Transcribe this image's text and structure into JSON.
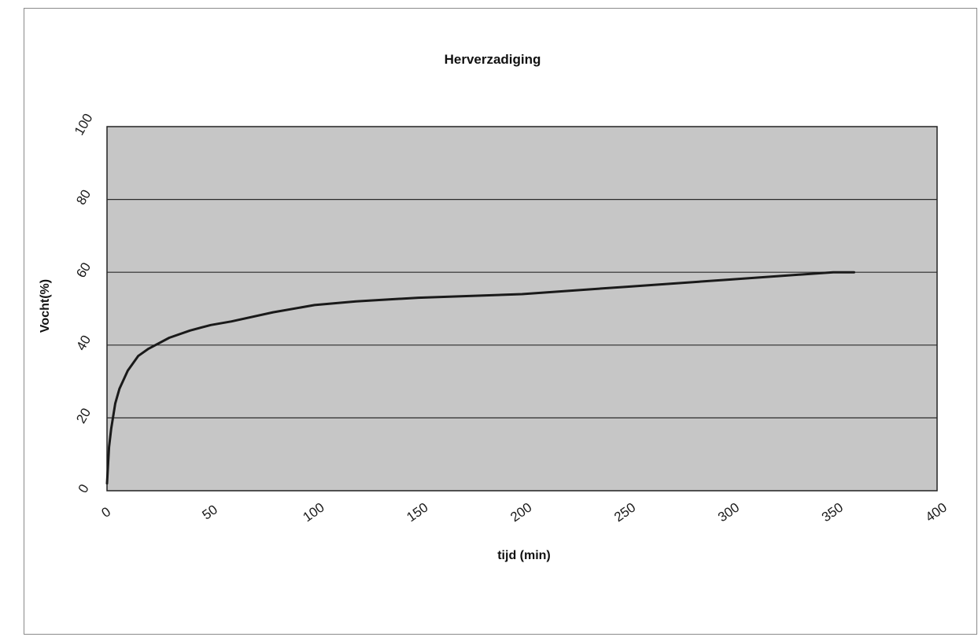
{
  "chart_data": {
    "type": "line",
    "title": "Herverzadiging",
    "xlabel": "tijd (min)",
    "ylabel": "Vocht(%)",
    "xlim": [
      0,
      400
    ],
    "ylim": [
      0,
      100
    ],
    "x_ticks": [
      "0",
      "50",
      "100",
      "150",
      "200",
      "250",
      "300",
      "350",
      "400"
    ],
    "y_ticks": [
      "0",
      "20",
      "40",
      "60",
      "80",
      "100"
    ],
    "grid": "horizontal",
    "legend": "none",
    "plot_background": "#c6c6c6",
    "line_color": "#1a1a1a",
    "series": [
      {
        "x": [
          0,
          1,
          2,
          4,
          6,
          10,
          15,
          20,
          30,
          40,
          50,
          60,
          80,
          100,
          120,
          150,
          200,
          250,
          300,
          350,
          360
        ],
        "y": [
          2,
          12,
          17,
          24,
          28,
          33,
          37,
          39,
          42,
          44,
          45.5,
          46.5,
          49,
          51,
          52,
          53,
          54,
          56,
          58,
          60,
          60
        ]
      }
    ]
  }
}
